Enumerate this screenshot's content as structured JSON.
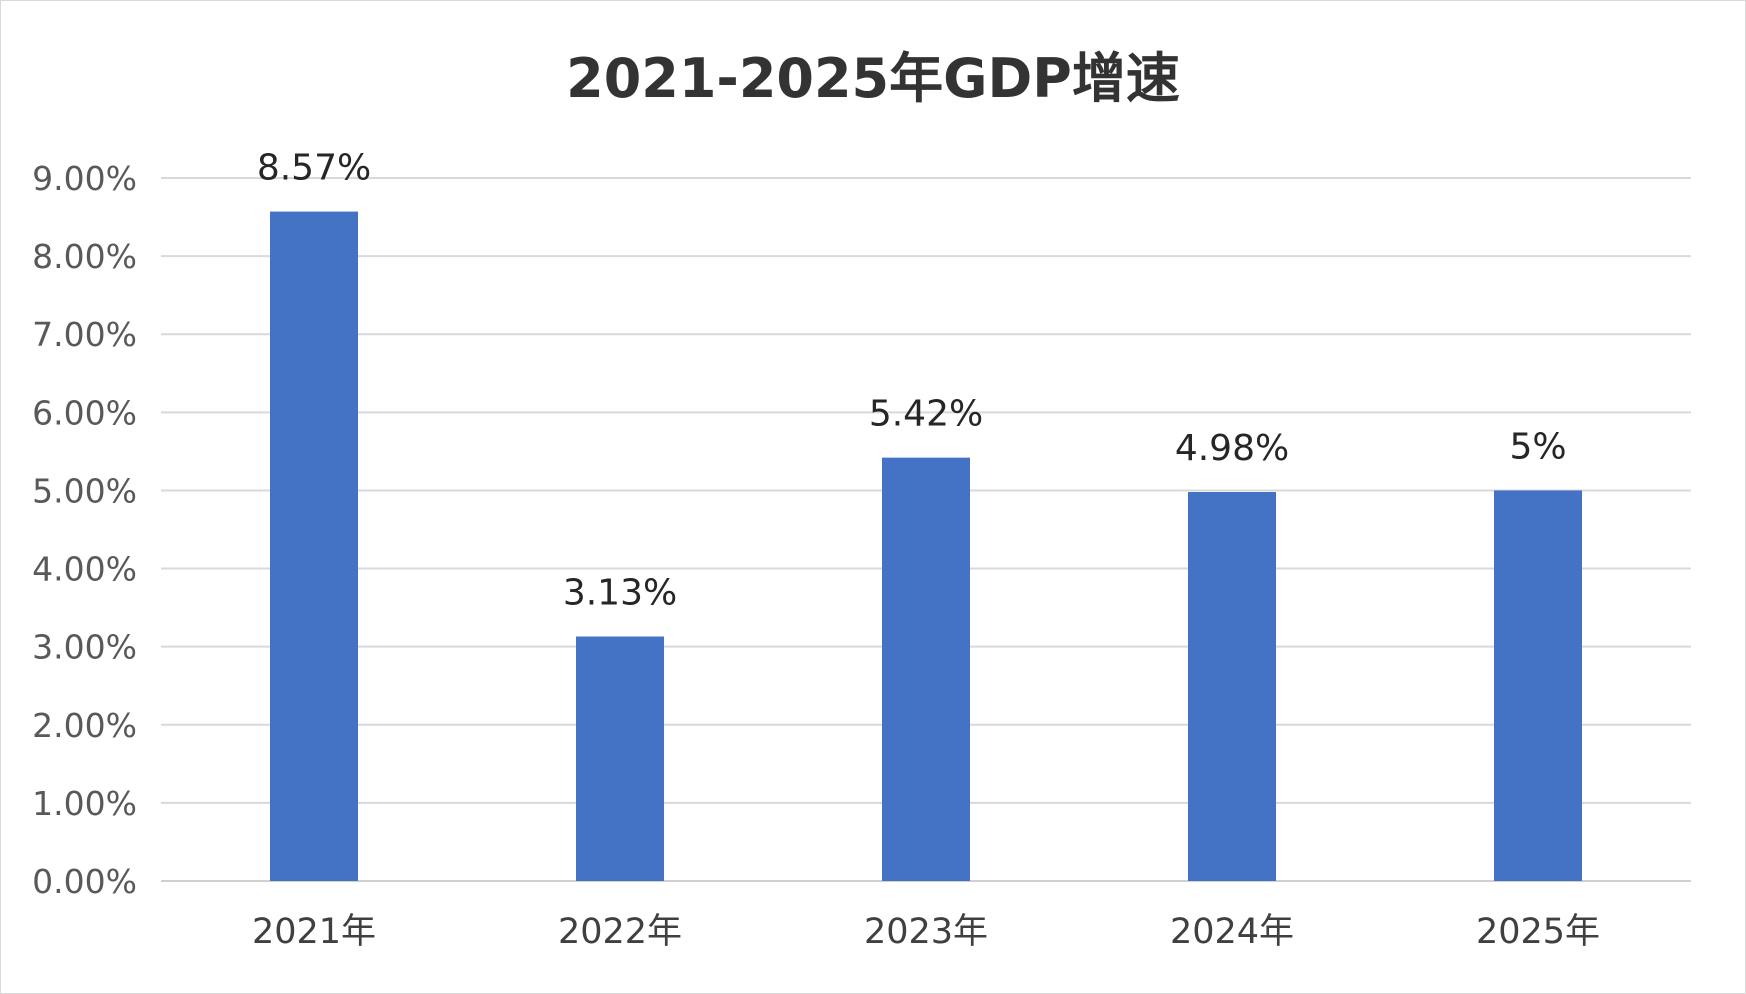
{
  "chart_data": {
    "type": "bar",
    "title": "2021-2025年GDP增速",
    "xlabel": "",
    "ylabel": "",
    "categories": [
      "2021年",
      "2022年",
      "2023年",
      "2024年",
      "2025年"
    ],
    "values": [
      8.57,
      3.13,
      5.42,
      4.98,
      5
    ],
    "data_labels": [
      "8.57%",
      "3.13%",
      "5.42%",
      "4.98%",
      "5%"
    ],
    "ylim": [
      0,
      9
    ],
    "y_ticks": [
      0,
      1,
      2,
      3,
      4,
      5,
      6,
      7,
      8,
      9
    ],
    "y_tick_labels": [
      "0.00%",
      "1.00%",
      "2.00%",
      "3.00%",
      "4.00%",
      "5.00%",
      "6.00%",
      "7.00%",
      "8.00%",
      "9.00%"
    ],
    "grid": true,
    "legend": "none",
    "bar_color": "#4472C4"
  }
}
